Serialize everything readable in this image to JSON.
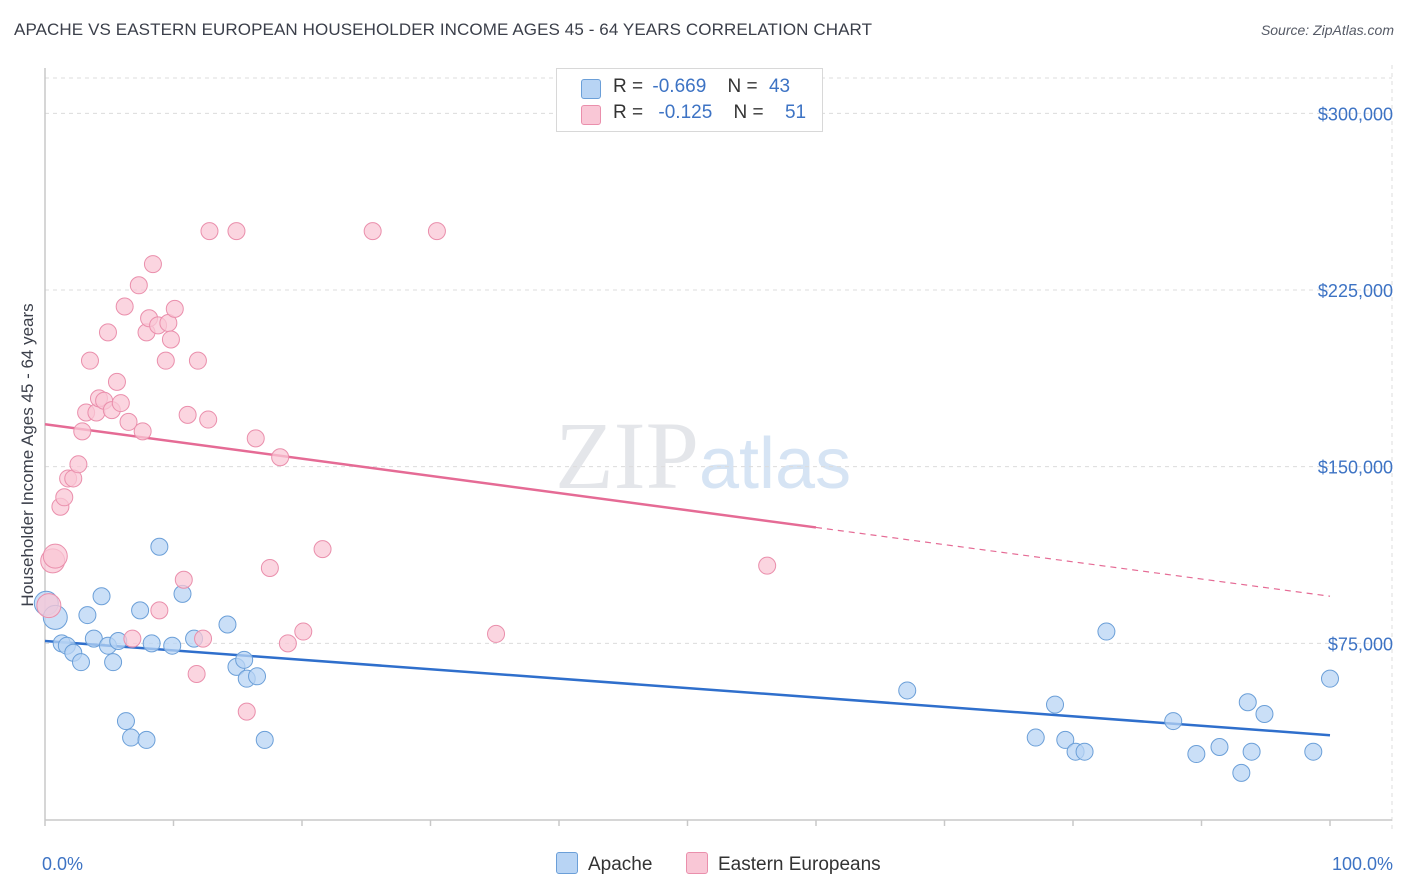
{
  "title": "APACHE VS EASTERN EUROPEAN HOUSEHOLDER INCOME AGES 45 - 64 YEARS CORRELATION CHART",
  "source": "Source: ZipAtlas.com",
  "watermark": {
    "zip": "ZIP",
    "atlas": "atlas"
  },
  "legend": {
    "apache": {
      "r_label": "R =",
      "r_value": "-0.669",
      "n_label": "N =",
      "n_value": "43"
    },
    "eastern": {
      "r_label": "R =",
      "r_value": "-0.125",
      "n_label": "N =",
      "n_value": "51"
    }
  },
  "colors": {
    "apache_fill": "#b8d4f4",
    "apache_stroke": "#6b9fd8",
    "apache_line": "#2f6fcc",
    "eastern_fill": "#f9c7d6",
    "eastern_stroke": "#ea8fac",
    "eastern_line": "#e56b95",
    "grid": "#dcdcdc",
    "tick_text": "#3d73c4"
  },
  "chart_data": {
    "type": "scatter",
    "title": "APACHE VS EASTERN EUROPEAN HOUSEHOLDER INCOME AGES 45 - 64 YEARS CORRELATION CHART",
    "xlabel": "",
    "ylabel": "Householder Income Ages 45 - 64 years",
    "xlim": [
      0,
      100
    ],
    "ylim": [
      0,
      315000
    ],
    "x_tick_labels": [
      "0.0%",
      "100.0%"
    ],
    "y_ticks": [
      75000,
      150000,
      225000,
      300000
    ],
    "y_tick_labels": [
      "$75,000",
      "$150,000",
      "$225,000",
      "$300,000"
    ],
    "grid": true,
    "legend_position": "bottom",
    "series": [
      {
        "name": "Apache",
        "points": [
          [
            0.1,
            92000
          ],
          [
            0.8,
            86000
          ],
          [
            1.3,
            75000
          ],
          [
            1.7,
            74000
          ],
          [
            2.2,
            71000
          ],
          [
            2.8,
            67000
          ],
          [
            3.3,
            87000
          ],
          [
            3.8,
            77000
          ],
          [
            4.4,
            95000
          ],
          [
            4.9,
            74000
          ],
          [
            5.3,
            67000
          ],
          [
            5.7,
            76000
          ],
          [
            6.3,
            42000
          ],
          [
            6.7,
            35000
          ],
          [
            7.4,
            89000
          ],
          [
            7.9,
            34000
          ],
          [
            8.3,
            75000
          ],
          [
            8.9,
            116000
          ],
          [
            9.9,
            74000
          ],
          [
            10.7,
            96000
          ],
          [
            11.6,
            77000
          ],
          [
            14.2,
            83000
          ],
          [
            14.9,
            65000
          ],
          [
            15.5,
            68000
          ],
          [
            15.7,
            60000
          ],
          [
            16.5,
            61000
          ],
          [
            17.1,
            34000
          ],
          [
            67.1,
            55000
          ],
          [
            77.1,
            35000
          ],
          [
            78.6,
            49000
          ],
          [
            79.4,
            34000
          ],
          [
            80.2,
            29000
          ],
          [
            80.9,
            29000
          ],
          [
            82.6,
            80000
          ],
          [
            87.8,
            42000
          ],
          [
            89.6,
            28000
          ],
          [
            91.4,
            31000
          ],
          [
            93.1,
            20000
          ],
          [
            93.6,
            50000
          ],
          [
            93.9,
            29000
          ],
          [
            94.9,
            45000
          ],
          [
            98.7,
            29000
          ],
          [
            100,
            60000
          ]
        ]
      },
      {
        "name": "Eastern Europeans",
        "points": [
          [
            0.3,
            91000
          ],
          [
            0.6,
            110000
          ],
          [
            0.8,
            112000
          ],
          [
            1.2,
            133000
          ],
          [
            1.5,
            137000
          ],
          [
            1.8,
            145000
          ],
          [
            2.2,
            145000
          ],
          [
            2.6,
            151000
          ],
          [
            2.9,
            165000
          ],
          [
            3.2,
            173000
          ],
          [
            3.5,
            195000
          ],
          [
            4.0,
            173000
          ],
          [
            4.2,
            179000
          ],
          [
            4.6,
            178000
          ],
          [
            4.9,
            207000
          ],
          [
            5.2,
            174000
          ],
          [
            5.6,
            186000
          ],
          [
            5.9,
            177000
          ],
          [
            6.2,
            218000
          ],
          [
            6.5,
            169000
          ],
          [
            6.8,
            77000
          ],
          [
            7.3,
            227000
          ],
          [
            7.6,
            165000
          ],
          [
            7.9,
            207000
          ],
          [
            8.1,
            213000
          ],
          [
            8.4,
            236000
          ],
          [
            8.8,
            210000
          ],
          [
            8.9,
            89000
          ],
          [
            9.4,
            195000
          ],
          [
            9.6,
            211000
          ],
          [
            9.8,
            204000
          ],
          [
            10.1,
            217000
          ],
          [
            10.8,
            102000
          ],
          [
            11.1,
            172000
          ],
          [
            11.8,
            62000
          ],
          [
            11.9,
            195000
          ],
          [
            12.3,
            77000
          ],
          [
            12.7,
            170000
          ],
          [
            12.8,
            250000
          ],
          [
            14.9,
            250000
          ],
          [
            15.7,
            46000
          ],
          [
            16.4,
            162000
          ],
          [
            17.5,
            107000
          ],
          [
            18.3,
            154000
          ],
          [
            18.9,
            75000
          ],
          [
            20.1,
            80000
          ],
          [
            21.6,
            115000
          ],
          [
            25.5,
            250000
          ],
          [
            30.5,
            250000
          ],
          [
            35.1,
            79000
          ],
          [
            56.2,
            108000
          ]
        ]
      }
    ],
    "trend_lines": [
      {
        "series": "Apache",
        "x": [
          0,
          100
        ],
        "y": [
          76000,
          36000
        ],
        "dashed_after": null
      },
      {
        "series": "Eastern Europeans",
        "x": [
          0,
          100
        ],
        "y": [
          168000,
          95000
        ],
        "solid_until": 60
      }
    ]
  }
}
